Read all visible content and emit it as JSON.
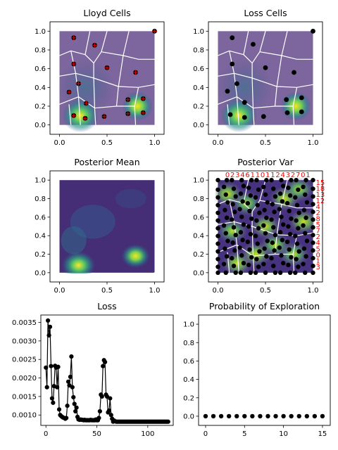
{
  "chart_data": [
    {
      "type": "scatter",
      "title": "Lloyd Cells",
      "xlim": [
        -0.1,
        1.1
      ],
      "ylim": [
        -0.1,
        1.1
      ],
      "xticks": [
        "0.0",
        "0.5",
        "1.0"
      ],
      "yticks": [
        "0.0",
        "0.2",
        "0.4",
        "0.6",
        "0.8",
        "1.0"
      ],
      "background": "voronoi cells over a purple density field with bright yellow-green spots near (0.2, 0.1) and (0.8, 0.2)",
      "marker": "black dot with red plus",
      "points": [
        [
          0.15,
          0.93
        ],
        [
          0.37,
          0.85
        ],
        [
          0.15,
          0.65
        ],
        [
          0.5,
          0.61
        ],
        [
          0.8,
          0.56
        ],
        [
          0.2,
          0.44
        ],
        [
          0.1,
          0.35
        ],
        [
          0.72,
          0.27
        ],
        [
          0.88,
          0.28
        ],
        [
          0.28,
          0.23
        ],
        [
          0.15,
          0.1
        ],
        [
          0.27,
          0.07
        ],
        [
          0.47,
          0.09
        ],
        [
          0.72,
          0.12
        ],
        [
          0.88,
          0.13
        ],
        [
          1.0,
          1.0
        ]
      ]
    },
    {
      "type": "scatter",
      "title": "Loss Cells",
      "xlim": [
        -0.1,
        1.1
      ],
      "ylim": [
        -0.1,
        1.1
      ],
      "xticks": [
        "0.0",
        "0.5",
        "1.0"
      ],
      "yticks": [
        "0.0",
        "0.2",
        "0.4",
        "0.6",
        "0.8",
        "1.0"
      ],
      "marker": "black dot",
      "points": [
        [
          0.15,
          0.93
        ],
        [
          0.37,
          0.86
        ],
        [
          0.15,
          0.65
        ],
        [
          0.5,
          0.61
        ],
        [
          0.8,
          0.56
        ],
        [
          0.2,
          0.44
        ],
        [
          0.1,
          0.36
        ],
        [
          0.72,
          0.27
        ],
        [
          0.88,
          0.29
        ],
        [
          0.28,
          0.24
        ],
        [
          0.13,
          0.11
        ],
        [
          0.28,
          0.08
        ],
        [
          0.48,
          0.09
        ],
        [
          0.73,
          0.13
        ],
        [
          0.88,
          0.14
        ],
        [
          1.0,
          1.0
        ]
      ]
    },
    {
      "type": "heatmap",
      "title": "Posterior Mean",
      "xlim": [
        -0.1,
        1.1
      ],
      "ylim": [
        -0.1,
        1.1
      ],
      "xticks": [
        "0.0",
        "0.5",
        "1.0"
      ],
      "yticks": [
        "0.0",
        "0.2",
        "0.4",
        "0.6",
        "0.8",
        "1.0"
      ],
      "colormap": "viridis",
      "peaks": [
        {
          "x": 0.2,
          "y": 0.08,
          "level": 1.0
        },
        {
          "x": 0.8,
          "y": 0.18,
          "level": 0.85
        }
      ]
    },
    {
      "type": "scatter",
      "title": "Posterior Var",
      "xlim": [
        -0.1,
        1.1
      ],
      "ylim": [
        -0.1,
        1.1
      ],
      "xticks": [
        "0.0",
        "0.5",
        "1.0"
      ],
      "yticks": [
        "0.0",
        "0.2",
        "0.4",
        "0.6",
        "0.8",
        "1.0"
      ],
      "colormap": "viridis",
      "top_labels": [
        "0",
        "2",
        "3",
        "4",
        "6",
        "1",
        "1",
        "0",
        "1",
        "1",
        "2",
        "4",
        "3",
        "2",
        "7",
        "0",
        "1"
      ],
      "right_labels": [
        "15",
        "18",
        "13",
        "12",
        "4",
        "2",
        "8",
        "5",
        "7",
        "2",
        "4",
        "5",
        "0",
        "1",
        "3"
      ]
    },
    {
      "type": "line",
      "title": "Loss",
      "xlim": [
        -5,
        125
      ],
      "ylim": [
        0.00072,
        0.0037
      ],
      "xticks": [
        "0",
        "50",
        "100"
      ],
      "yticks": [
        "0.0010",
        "0.0015",
        "0.0020",
        "0.0025",
        "0.0030",
        "0.0035"
      ],
      "x": [
        0,
        1,
        2,
        3,
        4,
        5,
        6,
        7,
        8,
        9,
        10,
        11,
        12,
        13,
        14,
        15,
        16,
        17,
        18,
        19,
        20,
        21,
        22,
        23,
        24,
        25,
        26,
        27,
        28,
        29,
        30,
        31,
        32,
        33,
        34,
        35,
        36,
        37,
        38,
        39,
        40,
        41,
        42,
        43,
        44,
        45,
        46,
        47,
        48,
        49,
        50,
        51,
        52,
        53,
        54,
        55,
        56,
        57,
        58,
        59,
        60,
        61,
        62,
        63,
        64,
        65,
        66,
        67,
        68,
        69,
        70,
        71,
        72,
        73,
        74,
        75,
        76,
        77,
        78,
        79,
        80,
        81,
        82,
        83,
        84,
        85,
        86,
        87,
        88,
        89,
        90,
        91,
        92,
        93,
        94,
        95,
        96,
        97,
        98,
        99,
        100,
        101,
        102,
        103,
        104,
        105,
        106,
        107,
        108,
        109,
        110,
        111,
        112,
        113,
        114,
        115,
        116,
        117,
        118,
        119,
        120
      ],
      "y": [
        0.00228,
        0.00175,
        0.00355,
        0.00315,
        0.00338,
        0.00232,
        0.00145,
        0.00133,
        0.00178,
        0.00233,
        0.00228,
        0.00175,
        0.0023,
        0.00115,
        0.001,
        0.00097,
        0.00095,
        0.00093,
        0.00092,
        0.0009,
        0.00092,
        0.00125,
        0.0019,
        0.0018,
        0.00203,
        0.00258,
        0.00175,
        0.00148,
        0.0013,
        0.0011,
        0.0012,
        0.00095,
        0.00088,
        0.00087,
        0.00088,
        0.00087,
        0.00087,
        0.00086,
        0.00087,
        0.00086,
        0.00086,
        0.00086,
        0.00086,
        0.00086,
        0.00087,
        0.00086,
        0.00086,
        0.00086,
        0.00086,
        0.00088,
        0.00086,
        0.00086,
        0.00092,
        0.0011,
        0.00155,
        0.0015,
        0.00232,
        0.00248,
        0.00243,
        0.00155,
        0.0015,
        0.00107,
        0.00112,
        0.00145,
        0.001,
        0.0009,
        0.00082,
        0.00085,
        0.00083,
        0.00082,
        0.00082,
        0.00082,
        0.00082,
        0.00082,
        0.00082,
        0.00082,
        0.00082,
        0.00082,
        0.00082,
        0.00082,
        0.00082,
        0.00082,
        0.00082,
        0.00082,
        0.00082,
        0.00082,
        0.00082,
        0.00082,
        0.00082,
        0.00082,
        0.00082,
        0.00082,
        0.00082,
        0.00082,
        0.00082,
        0.00082,
        0.00082,
        0.00082,
        0.00082,
        0.00082,
        0.00082,
        0.00082,
        0.00082,
        0.00082,
        0.00082,
        0.00082,
        0.00082,
        0.00082,
        0.00082,
        0.00082,
        0.00082,
        0.00082,
        0.00082,
        0.00082,
        0.00082,
        0.00082,
        0.00082,
        0.00082,
        0.00082,
        0.00082,
        0.00082
      ]
    },
    {
      "type": "scatter",
      "title": "Probability of Exploration",
      "xlim": [
        -0.9,
        16.0
      ],
      "ylim": [
        -0.1,
        1.1
      ],
      "xticks": [
        "0",
        "5",
        "10",
        "15"
      ],
      "yticks": [
        "0.0",
        "0.2",
        "0.4",
        "0.6",
        "0.8",
        "1.0"
      ],
      "x": [
        0,
        1,
        2,
        3,
        4,
        5,
        6,
        7,
        8,
        9,
        10,
        11,
        12,
        13,
        14,
        15
      ],
      "y": [
        0,
        0,
        0,
        0,
        0,
        0,
        0,
        0,
        0,
        0,
        0,
        0,
        0,
        0,
        0,
        0
      ]
    }
  ]
}
